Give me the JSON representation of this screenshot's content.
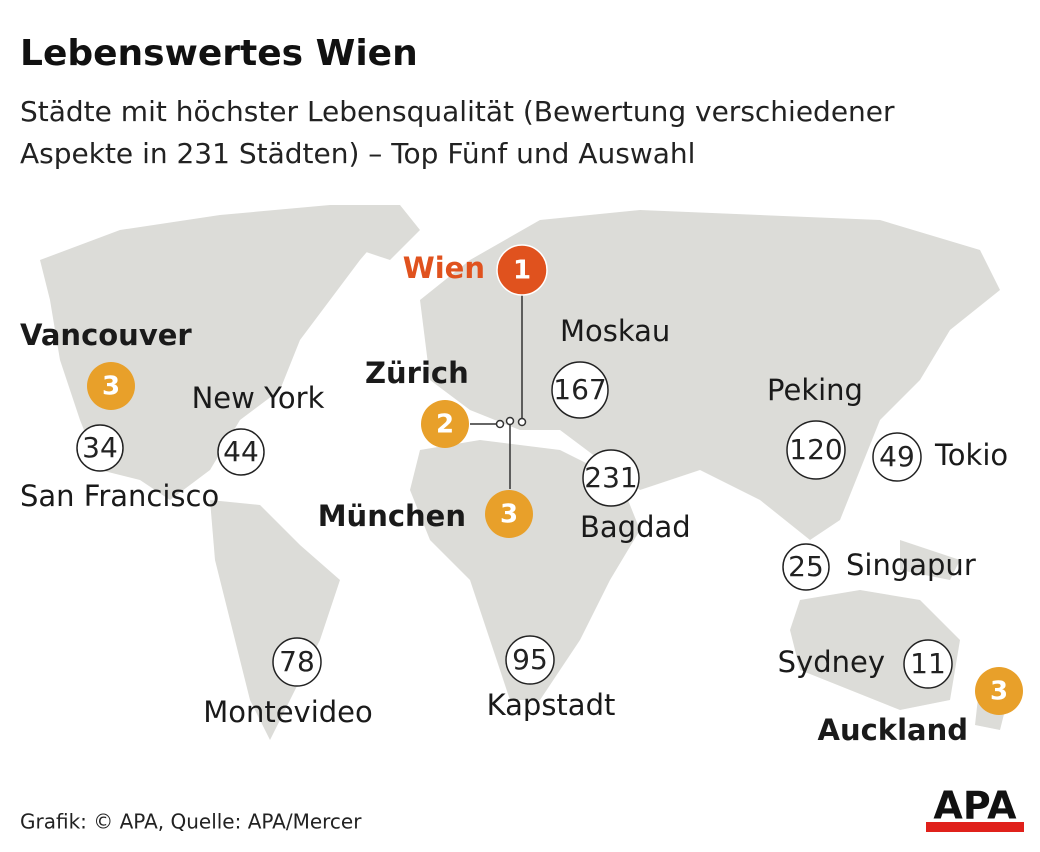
{
  "header": {
    "title": "Lebenswertes Wien",
    "subtitle_lines": [
      "Städte mit höchster Lebensqualität (Bewertung verschiedener",
      "Aspekte in 231 Städten) – Top Fünf und Auswahl"
    ]
  },
  "cities": [
    {
      "name": "Wien",
      "rank": 1
    },
    {
      "name": "Vancouver",
      "rank": 3
    },
    {
      "name": "San Francisco",
      "rank": 34
    },
    {
      "name": "New York",
      "rank": 44
    },
    {
      "name": "Zürich",
      "rank": 2
    },
    {
      "name": "München",
      "rank": 3
    },
    {
      "name": "Moskau",
      "rank": 167
    },
    {
      "name": "Bagdad",
      "rank": 231
    },
    {
      "name": "Peking",
      "rank": 120
    },
    {
      "name": "Tokio",
      "rank": 49
    },
    {
      "name": "Singapur",
      "rank": 25
    },
    {
      "name": "Sydney",
      "rank": 11
    },
    {
      "name": "Auckland",
      "rank": 3
    },
    {
      "name": "Montevideo",
      "rank": 78
    },
    {
      "name": "Kapstadt",
      "rank": 95
    }
  ],
  "footer": {
    "source": "Grafik: © APA, Quelle: APA/Mercer",
    "logo": "APA"
  }
}
